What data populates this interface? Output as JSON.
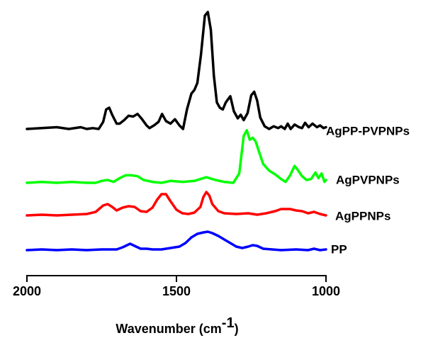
{
  "chart_data": {
    "type": "line",
    "title": "",
    "xlabel": {
      "main": "Wavenumber (cm",
      "superscript": "-1",
      "close": ")"
    },
    "ylabel": "",
    "xlim": [
      2000,
      1000
    ],
    "x_reversed": true,
    "x_ticks": [
      "2000",
      "1500",
      "1000"
    ],
    "grid": false,
    "legend": "labels at right end of each trace",
    "series": [
      {
        "name": "PP",
        "color": "#0000ff",
        "baseline": 0.0,
        "points": [
          [
            2000,
            0.0
          ],
          [
            1950,
            0.5
          ],
          [
            1900,
            0.0
          ],
          [
            1850,
            0.5
          ],
          [
            1800,
            0.0
          ],
          [
            1750,
            0.5
          ],
          [
            1700,
            0.5
          ],
          [
            1680,
            2.0
          ],
          [
            1655,
            4.5
          ],
          [
            1640,
            3.0
          ],
          [
            1620,
            1.0
          ],
          [
            1600,
            1.0
          ],
          [
            1580,
            0.5
          ],
          [
            1550,
            0.5
          ],
          [
            1520,
            1.5
          ],
          [
            1490,
            2.5
          ],
          [
            1470,
            5.0
          ],
          [
            1450,
            9.0
          ],
          [
            1430,
            11.5
          ],
          [
            1410,
            12.5
          ],
          [
            1395,
            13.0
          ],
          [
            1380,
            12.0
          ],
          [
            1360,
            10.0
          ],
          [
            1340,
            7.5
          ],
          [
            1320,
            5.0
          ],
          [
            1300,
            2.5
          ],
          [
            1280,
            1.5
          ],
          [
            1260,
            2.5
          ],
          [
            1245,
            3.5
          ],
          [
            1230,
            3.0
          ],
          [
            1210,
            1.0
          ],
          [
            1180,
            0.5
          ],
          [
            1150,
            0.0
          ],
          [
            1100,
            0.5
          ],
          [
            1060,
            0.0
          ],
          [
            1040,
            1.0
          ],
          [
            1020,
            0.0
          ],
          [
            1000,
            0.5
          ]
        ]
      },
      {
        "name": "AgPPNPs",
        "color": "#ff0000",
        "baseline": 0.0,
        "points": [
          [
            2000,
            0.0
          ],
          [
            1950,
            0.5
          ],
          [
            1900,
            0.0
          ],
          [
            1850,
            0.5
          ],
          [
            1800,
            1.0
          ],
          [
            1770,
            2.5
          ],
          [
            1745,
            7.0
          ],
          [
            1730,
            8.0
          ],
          [
            1715,
            6.0
          ],
          [
            1700,
            3.5
          ],
          [
            1680,
            5.5
          ],
          [
            1660,
            6.5
          ],
          [
            1640,
            6.0
          ],
          [
            1620,
            3.0
          ],
          [
            1600,
            2.5
          ],
          [
            1580,
            5.5
          ],
          [
            1565,
            11.0
          ],
          [
            1550,
            15.0
          ],
          [
            1535,
            15.0
          ],
          [
            1520,
            10.0
          ],
          [
            1500,
            4.0
          ],
          [
            1480,
            1.5
          ],
          [
            1460,
            1.0
          ],
          [
            1440,
            2.0
          ],
          [
            1420,
            6.0
          ],
          [
            1410,
            13.0
          ],
          [
            1400,
            16.5
          ],
          [
            1390,
            14.0
          ],
          [
            1380,
            8.0
          ],
          [
            1360,
            3.0
          ],
          [
            1340,
            1.5
          ],
          [
            1300,
            1.0
          ],
          [
            1260,
            1.5
          ],
          [
            1230,
            0.5
          ],
          [
            1200,
            1.5
          ],
          [
            1170,
            3.0
          ],
          [
            1150,
            4.5
          ],
          [
            1120,
            4.5
          ],
          [
            1100,
            3.5
          ],
          [
            1080,
            3.0
          ],
          [
            1060,
            1.5
          ],
          [
            1040,
            2.5
          ],
          [
            1020,
            1.0
          ],
          [
            1000,
            0.0
          ]
        ]
      },
      {
        "name": "AgPVPNPs",
        "color": "#00ff00",
        "baseline": 0.0,
        "points": [
          [
            2000,
            0.0
          ],
          [
            1950,
            0.5
          ],
          [
            1900,
            0.0
          ],
          [
            1850,
            0.5
          ],
          [
            1800,
            0.0
          ],
          [
            1770,
            0.0
          ],
          [
            1750,
            1.0
          ],
          [
            1730,
            1.5
          ],
          [
            1710,
            0.5
          ],
          [
            1690,
            2.5
          ],
          [
            1670,
            4.0
          ],
          [
            1650,
            4.0
          ],
          [
            1630,
            3.5
          ],
          [
            1610,
            1.5
          ],
          [
            1580,
            0.5
          ],
          [
            1550,
            0.0
          ],
          [
            1520,
            1.0
          ],
          [
            1480,
            0.5
          ],
          [
            1440,
            1.0
          ],
          [
            1400,
            3.0
          ],
          [
            1370,
            1.5
          ],
          [
            1340,
            0.5
          ],
          [
            1310,
            0.0
          ],
          [
            1290,
            5.0
          ],
          [
            1275,
            25.0
          ],
          [
            1265,
            28.0
          ],
          [
            1255,
            23.0
          ],
          [
            1245,
            24.0
          ],
          [
            1235,
            22.0
          ],
          [
            1225,
            17.0
          ],
          [
            1210,
            10.0
          ],
          [
            1190,
            6.5
          ],
          [
            1170,
            4.5
          ],
          [
            1150,
            2.0
          ],
          [
            1135,
            0.5
          ],
          [
            1120,
            4.0
          ],
          [
            1105,
            9.0
          ],
          [
            1095,
            7.0
          ],
          [
            1080,
            3.5
          ],
          [
            1065,
            1.5
          ],
          [
            1050,
            2.0
          ],
          [
            1035,
            5.5
          ],
          [
            1025,
            2.5
          ],
          [
            1015,
            5.0
          ],
          [
            1005,
            0.5
          ],
          [
            1000,
            1.5
          ]
        ]
      },
      {
        "name": "AgPP-PVPNPs",
        "color": "#000000",
        "baseline": 0.0,
        "points": [
          [
            2000,
            0.0
          ],
          [
            1950,
            0.5
          ],
          [
            1900,
            1.0
          ],
          [
            1860,
            0.0
          ],
          [
            1820,
            1.0
          ],
          [
            1800,
            0.0
          ],
          [
            1780,
            0.5
          ],
          [
            1760,
            0.0
          ],
          [
            1745,
            4.0
          ],
          [
            1735,
            11.0
          ],
          [
            1725,
            12.0
          ],
          [
            1715,
            8.0
          ],
          [
            1700,
            3.0
          ],
          [
            1690,
            3.0
          ],
          [
            1675,
            5.0
          ],
          [
            1660,
            7.5
          ],
          [
            1645,
            7.0
          ],
          [
            1630,
            8.5
          ],
          [
            1615,
            5.5
          ],
          [
            1600,
            2.0
          ],
          [
            1590,
            0.5
          ],
          [
            1575,
            2.0
          ],
          [
            1560,
            4.0
          ],
          [
            1548,
            8.5
          ],
          [
            1535,
            4.5
          ],
          [
            1520,
            3.0
          ],
          [
            1505,
            5.5
          ],
          [
            1490,
            2.0
          ],
          [
            1478,
            0.0
          ],
          [
            1465,
            11.0
          ],
          [
            1450,
            20.0
          ],
          [
            1440,
            22.0
          ],
          [
            1430,
            26.0
          ],
          [
            1418,
            42.0
          ],
          [
            1405,
            64.0
          ],
          [
            1395,
            66.0
          ],
          [
            1385,
            56.0
          ],
          [
            1375,
            30.0
          ],
          [
            1365,
            15.0
          ],
          [
            1355,
            12.0
          ],
          [
            1345,
            11.0
          ],
          [
            1335,
            15.0
          ],
          [
            1320,
            18.5
          ],
          [
            1308,
            10.0
          ],
          [
            1295,
            6.0
          ],
          [
            1285,
            8.0
          ],
          [
            1275,
            5.0
          ],
          [
            1262,
            9.0
          ],
          [
            1250,
            19.0
          ],
          [
            1240,
            21.0
          ],
          [
            1230,
            16.0
          ],
          [
            1220,
            6.5
          ],
          [
            1205,
            1.5
          ],
          [
            1190,
            0.0
          ],
          [
            1175,
            1.5
          ],
          [
            1160,
            0.5
          ],
          [
            1150,
            1.5
          ],
          [
            1138,
            0.0
          ],
          [
            1128,
            3.0
          ],
          [
            1118,
            0.0
          ],
          [
            1105,
            2.5
          ],
          [
            1090,
            1.0
          ],
          [
            1080,
            0.5
          ],
          [
            1070,
            3.5
          ],
          [
            1058,
            1.0
          ],
          [
            1045,
            3.0
          ],
          [
            1030,
            1.0
          ],
          [
            1020,
            2.0
          ],
          [
            1008,
            0.5
          ],
          [
            1000,
            1.0
          ]
        ]
      }
    ]
  }
}
